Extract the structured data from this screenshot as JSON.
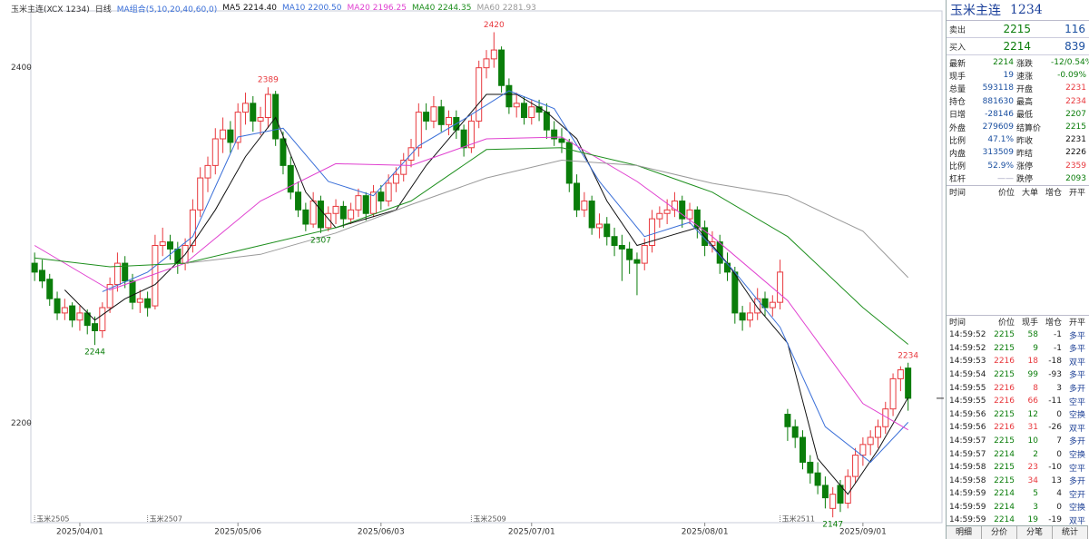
{
  "toolbar": {
    "symbol": "玉米主连(XCX 1234)",
    "period": "日线",
    "ma_set": "MA组合(5,10,20,40,60,0)"
  },
  "chart_data": {
    "type": "candlestick",
    "up_color": "#e8383d",
    "down_color": "#0a7d0a",
    "xlim": [
      -0.5,
      120.5
    ],
    "ylim": [
      2144,
      2432
    ],
    "yticks": [
      2200,
      2400
    ],
    "xticks": [
      {
        "value": 6,
        "label": "2025/04/01"
      },
      {
        "value": 27,
        "label": "2025/05/06"
      },
      {
        "value": 46,
        "label": "2025/06/03"
      },
      {
        "value": 66,
        "label": "2025/07/01"
      },
      {
        "value": 89,
        "label": "2025/08/01"
      },
      {
        "value": 110,
        "label": "2025/09/01"
      }
    ],
    "candles": [
      [
        2290,
        2296,
        2280,
        2285
      ],
      [
        2286,
        2292,
        2276,
        2280
      ],
      [
        2281,
        2284,
        2266,
        2270
      ],
      [
        2270,
        2274,
        2258,
        2262
      ],
      [
        2262,
        2270,
        2258,
        2265
      ],
      [
        2266,
        2268,
        2254,
        2258
      ],
      [
        2258,
        2266,
        2252,
        2262
      ],
      [
        2262,
        2264,
        2250,
        2255
      ],
      [
        2256,
        2260,
        2244,
        2252
      ],
      [
        2252,
        2268,
        2248,
        2265
      ],
      [
        2265,
        2282,
        2262,
        2278
      ],
      [
        2278,
        2296,
        2274,
        2290
      ],
      [
        2290,
        2294,
        2276,
        2280
      ],
      [
        2280,
        2284,
        2264,
        2268
      ],
      [
        2268,
        2275,
        2262,
        2270
      ],
      [
        2270,
        2274,
        2260,
        2265
      ],
      [
        2266,
        2306,
        2264,
        2300
      ],
      [
        2300,
        2310,
        2294,
        2302
      ],
      [
        2302,
        2306,
        2292,
        2298
      ],
      [
        2298,
        2302,
        2284,
        2290
      ],
      [
        2290,
        2304,
        2286,
        2300
      ],
      [
        2300,
        2326,
        2296,
        2320
      ],
      [
        2320,
        2344,
        2316,
        2338
      ],
      [
        2338,
        2350,
        2330,
        2345
      ],
      [
        2345,
        2366,
        2340,
        2360
      ],
      [
        2360,
        2372,
        2352,
        2365
      ],
      [
        2365,
        2370,
        2352,
        2358
      ],
      [
        2358,
        2380,
        2354,
        2375
      ],
      [
        2375,
        2386,
        2368,
        2380
      ],
      [
        2380,
        2384,
        2364,
        2370
      ],
      [
        2370,
        2378,
        2362,
        2372
      ],
      [
        2372,
        2389,
        2366,
        2385
      ],
      [
        2385,
        2387,
        2356,
        2360
      ],
      [
        2360,
        2364,
        2340,
        2345
      ],
      [
        2345,
        2350,
        2326,
        2330
      ],
      [
        2330,
        2336,
        2316,
        2320
      ],
      [
        2320,
        2324,
        2308,
        2312
      ],
      [
        2312,
        2330,
        2310,
        2325
      ],
      [
        2325,
        2328,
        2307,
        2310
      ],
      [
        2310,
        2322,
        2308,
        2318
      ],
      [
        2318,
        2326,
        2312,
        2322
      ],
      [
        2322,
        2325,
        2310,
        2315
      ],
      [
        2315,
        2324,
        2312,
        2320
      ],
      [
        2320,
        2332,
        2316,
        2328
      ],
      [
        2328,
        2330,
        2314,
        2318
      ],
      [
        2318,
        2334,
        2316,
        2330
      ],
      [
        2330,
        2334,
        2320,
        2325
      ],
      [
        2325,
        2340,
        2322,
        2335
      ],
      [
        2335,
        2344,
        2330,
        2340
      ],
      [
        2340,
        2352,
        2336,
        2348
      ],
      [
        2348,
        2360,
        2344,
        2355
      ],
      [
        2355,
        2380,
        2350,
        2375
      ],
      [
        2375,
        2380,
        2365,
        2370
      ],
      [
        2370,
        2384,
        2366,
        2378
      ],
      [
        2378,
        2382,
        2364,
        2368
      ],
      [
        2368,
        2376,
        2362,
        2372
      ],
      [
        2372,
        2376,
        2360,
        2365
      ],
      [
        2365,
        2368,
        2350,
        2355
      ],
      [
        2355,
        2374,
        2352,
        2370
      ],
      [
        2370,
        2404,
        2366,
        2400
      ],
      [
        2400,
        2410,
        2394,
        2405
      ],
      [
        2405,
        2420,
        2400,
        2410
      ],
      [
        2410,
        2412,
        2386,
        2390
      ],
      [
        2390,
        2394,
        2374,
        2378
      ],
      [
        2378,
        2386,
        2372,
        2380
      ],
      [
        2380,
        2384,
        2368,
        2372
      ],
      [
        2372,
        2382,
        2368,
        2378
      ],
      [
        2378,
        2382,
        2370,
        2375
      ],
      [
        2375,
        2380,
        2360,
        2365
      ],
      [
        2365,
        2370,
        2356,
        2360
      ],
      [
        2360,
        2366,
        2352,
        2358
      ],
      [
        2358,
        2360,
        2330,
        2335
      ],
      [
        2335,
        2340,
        2316,
        2320
      ],
      [
        2320,
        2330,
        2316,
        2325
      ],
      [
        2325,
        2328,
        2306,
        2310
      ],
      [
        2310,
        2318,
        2304,
        2312
      ],
      [
        2312,
        2316,
        2300,
        2305
      ],
      [
        2305,
        2310,
        2294,
        2300
      ],
      [
        2300,
        2306,
        2280,
        2298
      ],
      [
        2298,
        2302,
        2284,
        2292
      ],
      [
        2292,
        2296,
        2272,
        2290
      ],
      [
        2290,
        2304,
        2286,
        2300
      ],
      [
        2300,
        2320,
        2296,
        2315
      ],
      [
        2315,
        2322,
        2310,
        2318
      ],
      [
        2318,
        2326,
        2312,
        2320
      ],
      [
        2320,
        2330,
        2316,
        2325
      ],
      [
        2325,
        2328,
        2310,
        2315
      ],
      [
        2315,
        2324,
        2312,
        2320
      ],
      [
        2320,
        2322,
        2304,
        2310
      ],
      [
        2310,
        2314,
        2294,
        2300
      ],
      [
        2300,
        2308,
        2296,
        2302
      ],
      [
        2302,
        2306,
        2284,
        2290
      ],
      [
        2290,
        2296,
        2280,
        2285
      ],
      [
        2285,
        2288,
        2256,
        2262
      ],
      [
        2262,
        2266,
        2252,
        2258
      ],
      [
        2258,
        2268,
        2254,
        2262
      ],
      [
        2262,
        2276,
        2258,
        2270
      ],
      [
        2270,
        2274,
        2260,
        2265
      ],
      [
        2265,
        2272,
        2260,
        2268
      ],
      [
        2268,
        2292,
        2264,
        2285
      ],
      [
        2205,
        2208,
        2190,
        2198
      ],
      [
        2198,
        2202,
        2186,
        2192
      ],
      [
        2192,
        2196,
        2174,
        2178
      ],
      [
        2178,
        2182,
        2166,
        2172
      ],
      [
        2172,
        2178,
        2160,
        2165
      ],
      [
        2165,
        2170,
        2152,
        2158
      ],
      [
        2152,
        2164,
        2147,
        2160
      ],
      [
        2165,
        2168,
        2150,
        2155
      ],
      [
        2155,
        2174,
        2152,
        2170
      ],
      [
        2170,
        2186,
        2166,
        2182
      ],
      [
        2182,
        2192,
        2176,
        2188
      ],
      [
        2188,
        2196,
        2182,
        2192
      ],
      [
        2192,
        2202,
        2186,
        2198
      ],
      [
        2198,
        2212,
        2194,
        2208
      ],
      [
        2208,
        2228,
        2204,
        2225
      ],
      [
        2225,
        2232,
        2218,
        2230
      ],
      [
        2231,
        2234,
        2207,
        2214
      ]
    ],
    "series": [
      {
        "name": "MA5",
        "color": "#111111",
        "legend_label": "2214.40",
        "x": [
          4,
          8,
          12,
          16,
          20,
          24,
          28,
          32,
          36,
          40,
          44,
          48,
          52,
          56,
          60,
          64,
          68,
          72,
          76,
          80,
          84,
          88,
          92,
          96,
          100,
          104,
          108,
          112,
          116
        ],
        "values": [
          2275,
          2258,
          2270,
          2278,
          2295,
          2320,
          2350,
          2372,
          2330,
          2310,
          2315,
          2320,
          2345,
          2365,
          2385,
          2385,
          2375,
          2360,
          2325,
          2300,
          2305,
          2310,
          2290,
          2265,
          2245,
          2180,
          2160,
          2185,
          2214.4
        ]
      },
      {
        "name": "MA10",
        "color": "#3a6fd8",
        "legend_label": "2200.50",
        "x": [
          9,
          15,
          21,
          27,
          33,
          39,
          45,
          51,
          57,
          63,
          69,
          75,
          81,
          87,
          93,
          99,
          105,
          111,
          116
        ],
        "values": [
          2274,
          2285,
          2305,
          2361,
          2366,
          2336,
          2328,
          2356,
          2371,
          2387,
          2377,
          2336,
          2305,
          2313,
          2285,
          2254,
          2198,
          2178,
          2200.5
        ]
      },
      {
        "name": "MA20",
        "color": "#e040d0",
        "legend_label": "2196.25",
        "x": [
          0,
          10,
          20,
          30,
          40,
          50,
          60,
          70,
          80,
          90,
          100,
          110,
          116
        ],
        "values": [
          2300,
          2275,
          2290,
          2325,
          2346,
          2345,
          2360,
          2361,
          2336,
          2305,
          2269,
          2211,
          2196.25
        ]
      },
      {
        "name": "MA40",
        "color": "#1e8f1e",
        "legend_label": "2244.35",
        "x": [
          0,
          10,
          20,
          30,
          40,
          50,
          60,
          70,
          80,
          90,
          100,
          110,
          116
        ],
        "values": [
          2293,
          2288,
          2290,
          2300,
          2310,
          2325,
          2354,
          2355,
          2345,
          2330,
          2305,
          2265,
          2244.35
        ]
      },
      {
        "name": "MA60",
        "color": "#9a9a9a",
        "legend_label": "2281.93",
        "x": [
          20,
          30,
          40,
          50,
          60,
          70,
          80,
          90,
          100,
          110,
          116
        ],
        "values": [
          2290,
          2295,
          2307,
          2323,
          2338,
          2348,
          2345,
          2335,
          2328,
          2308,
          2281.93
        ]
      }
    ],
    "annotations": [
      {
        "x": 8,
        "value": 2244
      },
      {
        "x": 31,
        "value": 2389
      },
      {
        "x": 38,
        "value": 2307
      },
      {
        "x": 61,
        "value": 2420
      },
      {
        "x": 106,
        "value": 2147
      },
      {
        "x": 116,
        "value": 2234
      }
    ],
    "contracts": [
      {
        "x": 0,
        "label": "玉米2505"
      },
      {
        "x": 15,
        "label": "玉米2507"
      },
      {
        "x": 58,
        "label": "玉米2509"
      },
      {
        "x": 99,
        "label": "玉米2511"
      }
    ]
  },
  "quote_panel": {
    "name": "玉米主连",
    "code": "1234",
    "ask": {
      "label": "卖出",
      "price": 2215,
      "volume": 116
    },
    "bid": {
      "label": "买入",
      "price": 2214,
      "volume": 839
    },
    "stats": [
      {
        "label": "最新",
        "value": 2214,
        "color": "#0a7d0a"
      },
      {
        "label": "涨跌",
        "value": "-12/0.54%",
        "color": "#0a7d0a"
      },
      {
        "label": "现手",
        "value": 19,
        "color": "#1a4fa0"
      },
      {
        "label": "速涨",
        "value": "-0.09%",
        "color": "#0a7d0a"
      },
      {
        "label": "总量",
        "value": 593118,
        "color": "#1a4fa0"
      },
      {
        "label": "开盘",
        "value": 2231,
        "color": "#e8383d"
      },
      {
        "label": "持仓",
        "value": 881630,
        "color": "#1a4fa0"
      },
      {
        "label": "最高",
        "value": 2234,
        "color": "#e8383d"
      },
      {
        "label": "日增",
        "value": -28146,
        "color": "#1a4fa0"
      },
      {
        "label": "最低",
        "value": 2207,
        "color": "#0a7d0a"
      },
      {
        "label": "外盘",
        "value": 279609,
        "color": "#1a4fa0"
      },
      {
        "label": "结算价",
        "value": 2215,
        "color": "#0a7d0a"
      },
      {
        "label": "比例",
        "value": "47.1%",
        "color": "#1a4fa0"
      },
      {
        "label": "昨收",
        "value": 2231,
        "color": "#111111"
      },
      {
        "label": "内盘",
        "value": 313509,
        "color": "#1a4fa0"
      },
      {
        "label": "昨结",
        "value": 2226,
        "color": "#111111"
      },
      {
        "label": "比例",
        "value": "52.9%",
        "color": "#1a4fa0"
      },
      {
        "label": "涨停",
        "value": 2359,
        "color": "#e8383d"
      },
      {
        "label": "杠杆",
        "value": "——",
        "color": "#9a9ab8"
      },
      {
        "label": "跌停",
        "value": 2093,
        "color": "#0a7d0a"
      }
    ],
    "big_orders_header": [
      "时间",
      "价位",
      "大单",
      "增仓",
      "开平"
    ],
    "trades_header": [
      "时间",
      "价位",
      "现手",
      "增仓",
      "开平"
    ],
    "trades": [
      {
        "time": "14:59:52",
        "price": 2215,
        "volume": 58,
        "oi_change": -1,
        "type": "多平",
        "price_color": "#0a7d0a",
        "volume_color": "#0a7d0a"
      },
      {
        "time": "14:59:52",
        "price": 2215,
        "volume": 9,
        "oi_change": -1,
        "type": "多平",
        "price_color": "#0a7d0a",
        "volume_color": "#0a7d0a"
      },
      {
        "time": "14:59:53",
        "price": 2216,
        "volume": 18,
        "oi_change": -18,
        "type": "双平",
        "price_color": "#e8383d",
        "volume_color": "#e8383d"
      },
      {
        "time": "14:59:54",
        "price": 2215,
        "volume": 99,
        "oi_change": -93,
        "type": "多平",
        "price_color": "#0a7d0a",
        "volume_color": "#0a7d0a"
      },
      {
        "time": "14:59:55",
        "price": 2216,
        "volume": 8,
        "oi_change": 3,
        "type": "多开",
        "price_color": "#e8383d",
        "volume_color": "#e8383d"
      },
      {
        "time": "14:59:55",
        "price": 2216,
        "volume": 66,
        "oi_change": -11,
        "type": "空平",
        "price_color": "#e8383d",
        "volume_color": "#e8383d"
      },
      {
        "time": "14:59:56",
        "price": 2215,
        "volume": 12,
        "oi_change": 0,
        "type": "空换",
        "price_color": "#0a7d0a",
        "volume_color": "#0a7d0a"
      },
      {
        "time": "14:59:56",
        "price": 2216,
        "volume": 31,
        "oi_change": -26,
        "type": "双平",
        "price_color": "#e8383d",
        "volume_color": "#e8383d"
      },
      {
        "time": "14:59:57",
        "price": 2215,
        "volume": 10,
        "oi_change": 7,
        "type": "多开",
        "price_color": "#0a7d0a",
        "volume_color": "#0a7d0a"
      },
      {
        "time": "14:59:57",
        "price": 2214,
        "volume": 2,
        "oi_change": 0,
        "type": "空换",
        "price_color": "#0a7d0a",
        "volume_color": "#0a7d0a"
      },
      {
        "time": "14:59:58",
        "price": 2215,
        "volume": 23,
        "oi_change": -10,
        "type": "空平",
        "price_color": "#0a7d0a",
        "volume_color": "#e8383d"
      },
      {
        "time": "14:59:58",
        "price": 2215,
        "volume": 34,
        "oi_change": 13,
        "type": "多开",
        "price_color": "#0a7d0a",
        "volume_color": "#e8383d"
      },
      {
        "time": "14:59:59",
        "price": 2214,
        "volume": 5,
        "oi_change": 4,
        "type": "空开",
        "price_color": "#0a7d0a",
        "volume_color": "#0a7d0a"
      },
      {
        "time": "14:59:59",
        "price": 2214,
        "volume": 3,
        "oi_change": 0,
        "type": "空换",
        "price_color": "#0a7d0a",
        "volume_color": "#0a7d0a"
      },
      {
        "time": "14:59:59",
        "price": 2214,
        "volume": 19,
        "oi_change": -19,
        "type": "双平",
        "price_color": "#0a7d0a",
        "volume_color": "#0a7d0a"
      }
    ],
    "tabs": [
      "明细",
      "分价",
      "分笔",
      "统计"
    ]
  }
}
